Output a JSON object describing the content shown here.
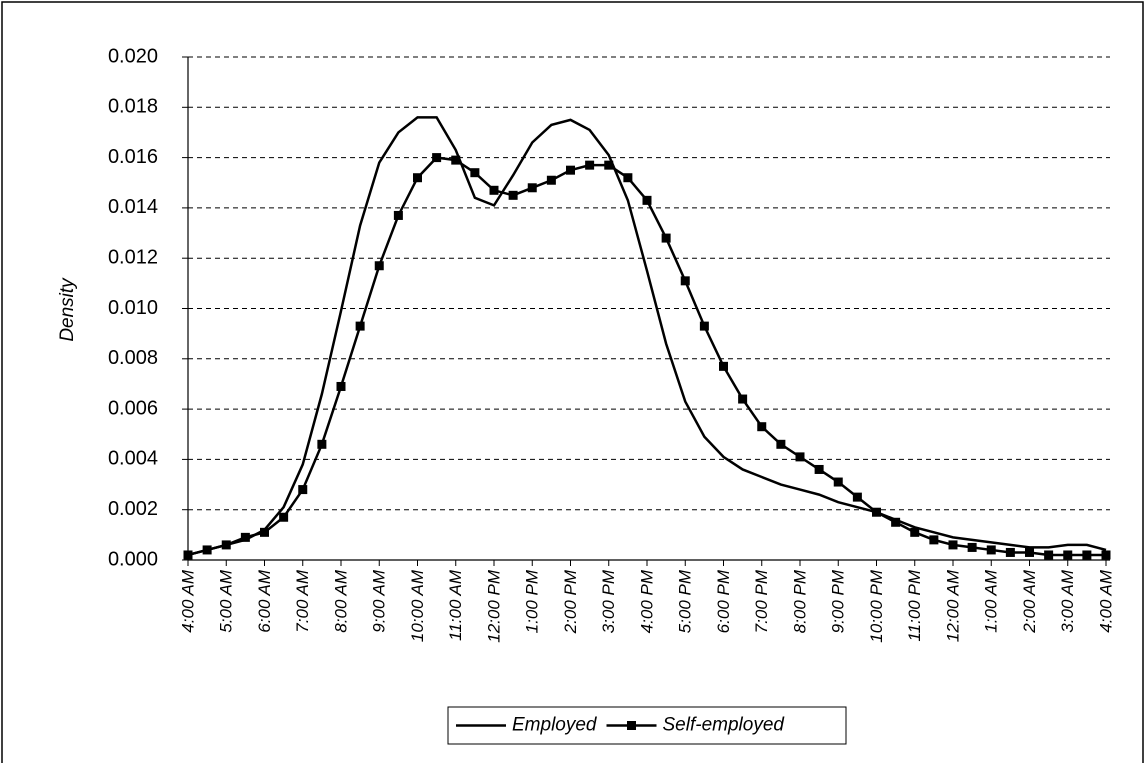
{
  "chart_data": {
    "type": "line",
    "y_label": "Density",
    "categories": [
      "4:00 AM",
      null,
      "5:00 AM",
      null,
      "6:00 AM",
      null,
      "7:00 AM",
      null,
      "8:00 AM",
      null,
      "9:00 AM",
      null,
      "10:00 AM",
      null,
      "11:00 AM",
      null,
      "12:00 PM",
      null,
      "1:00 PM",
      null,
      "2:00 PM",
      null,
      "3:00 PM",
      null,
      "4:00 PM",
      null,
      "5:00 PM",
      null,
      "6:00 PM",
      null,
      "7:00 PM",
      null,
      "8:00 PM",
      null,
      "9:00 PM",
      null,
      "10:00 PM",
      null,
      "11:00 PM",
      null,
      "12:00 AM",
      null,
      "1:00 AM",
      null,
      "2:00 AM",
      null,
      "3:00 AM",
      null,
      "4:00 AM"
    ],
    "series": [
      {
        "name": "Employed",
        "color": "#000000",
        "marker": "none",
        "values": [
          0.0002,
          0.0004,
          0.0006,
          0.0008,
          0.0012,
          0.0021,
          0.0038,
          0.0066,
          0.0099,
          0.0133,
          0.0158,
          0.017,
          0.0176,
          0.0176,
          0.0163,
          0.0144,
          0.0141,
          0.0153,
          0.0166,
          0.0173,
          0.0175,
          0.0171,
          0.0161,
          0.0143,
          0.0115,
          0.0086,
          0.0063,
          0.0049,
          0.0041,
          0.0036,
          0.0033,
          0.003,
          0.0028,
          0.0026,
          0.0023,
          0.0021,
          0.0019,
          0.0016,
          0.0013,
          0.0011,
          0.0009,
          0.0008,
          0.0007,
          0.0006,
          0.0005,
          0.0005,
          0.0006,
          0.0006,
          0.0004
        ]
      },
      {
        "name": "Self-employed",
        "color": "#000000",
        "marker": "square",
        "values": [
          0.0002,
          0.0004,
          0.0006,
          0.0009,
          0.0011,
          0.0017,
          0.0028,
          0.0046,
          0.0069,
          0.0093,
          0.0117,
          0.0137,
          0.0152,
          0.016,
          0.0159,
          0.0154,
          0.0147,
          0.0145,
          0.0148,
          0.0151,
          0.0155,
          0.0157,
          0.0157,
          0.0152,
          0.0143,
          0.0128,
          0.0111,
          0.0093,
          0.0077,
          0.0064,
          0.0053,
          0.0046,
          0.0041,
          0.0036,
          0.0031,
          0.0025,
          0.0019,
          0.0015,
          0.0011,
          0.0008,
          0.0006,
          0.0005,
          0.0004,
          0.0003,
          0.0003,
          0.0002,
          0.0002,
          0.0002,
          0.0002
        ]
      }
    ],
    "ylim": [
      0,
      0.02
    ],
    "yticks": [
      {
        "value": 0,
        "label": "0.000"
      },
      {
        "value": 0.002,
        "label": "0.002"
      },
      {
        "value": 0.004,
        "label": "0.004"
      },
      {
        "value": 0.006,
        "label": "0.006"
      },
      {
        "value": 0.008,
        "label": "0.008"
      },
      {
        "value": 0.01,
        "label": "0.010"
      },
      {
        "value": 0.012,
        "label": "0.012"
      },
      {
        "value": 0.014,
        "label": "0.014"
      },
      {
        "value": 0.016,
        "label": "0.016"
      },
      {
        "value": 0.018,
        "label": "0.018"
      },
      {
        "value": 0.02,
        "label": "0.020"
      }
    ],
    "grid": true,
    "legend": "bottom"
  }
}
